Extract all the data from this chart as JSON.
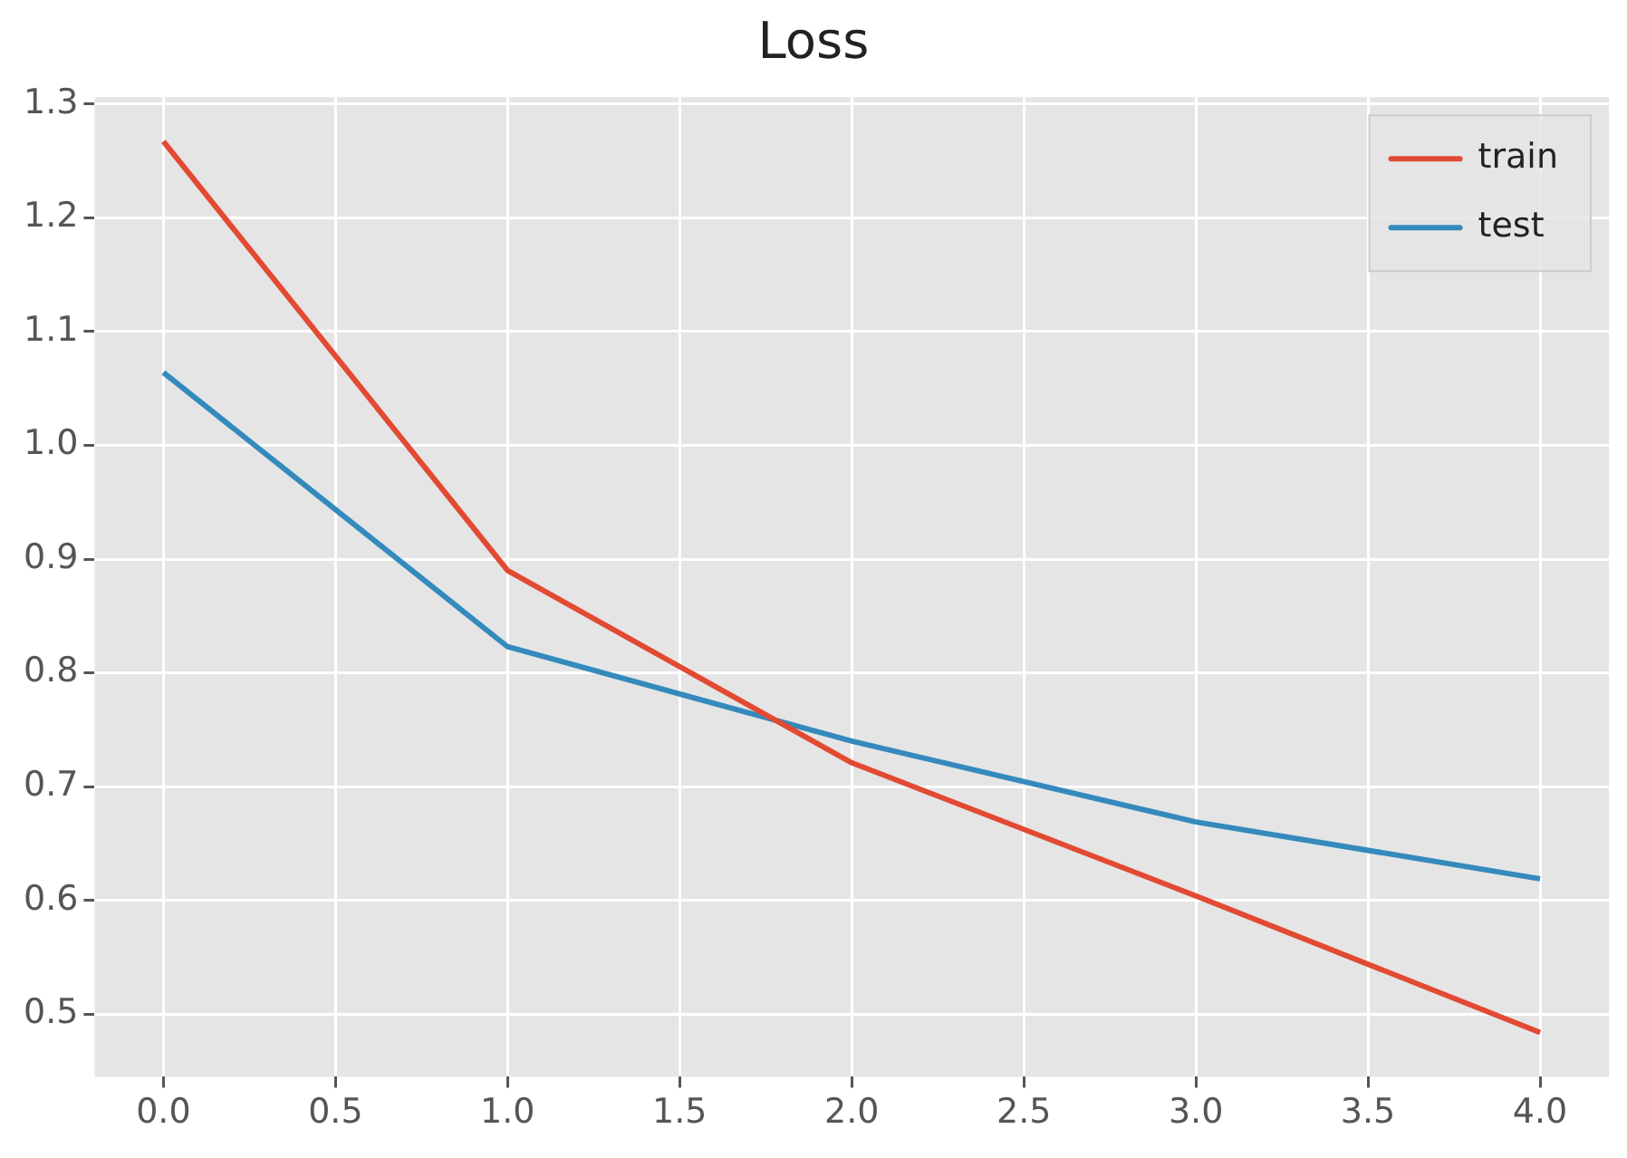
{
  "chart_data": {
    "type": "line",
    "title": "Loss",
    "x": [
      0,
      1,
      2,
      3,
      4
    ],
    "series": [
      {
        "name": "train",
        "color": "#e24a33",
        "values": [
          1.267,
          0.89,
          0.721,
          0.604,
          0.484
        ]
      },
      {
        "name": "test",
        "color": "#348abd",
        "values": [
          1.064,
          0.823,
          0.74,
          0.669,
          0.619
        ]
      }
    ],
    "xlim": [
      -0.2,
      4.2
    ],
    "xticks": [
      {
        "value": 0,
        "label": "0.0"
      },
      {
        "value": 0.5,
        "label": "0.5"
      },
      {
        "value": 1,
        "label": "1.0"
      },
      {
        "value": 1.5,
        "label": "1.5"
      },
      {
        "value": 2,
        "label": "2.0"
      },
      {
        "value": 2.5,
        "label": "2.5"
      },
      {
        "value": 3,
        "label": "3.0"
      },
      {
        "value": 3.5,
        "label": "3.5"
      },
      {
        "value": 4,
        "label": "4.0"
      }
    ],
    "ylim": [
      0.445,
      1.306
    ],
    "yticks": [
      0.5,
      0.6,
      0.7,
      0.8,
      0.9,
      {
        "value": 1,
        "label": "1.0"
      },
      1.1,
      1.2,
      1.3
    ],
    "grid": true,
    "legend": "top right",
    "marker": "none",
    "line_style": "solid"
  }
}
